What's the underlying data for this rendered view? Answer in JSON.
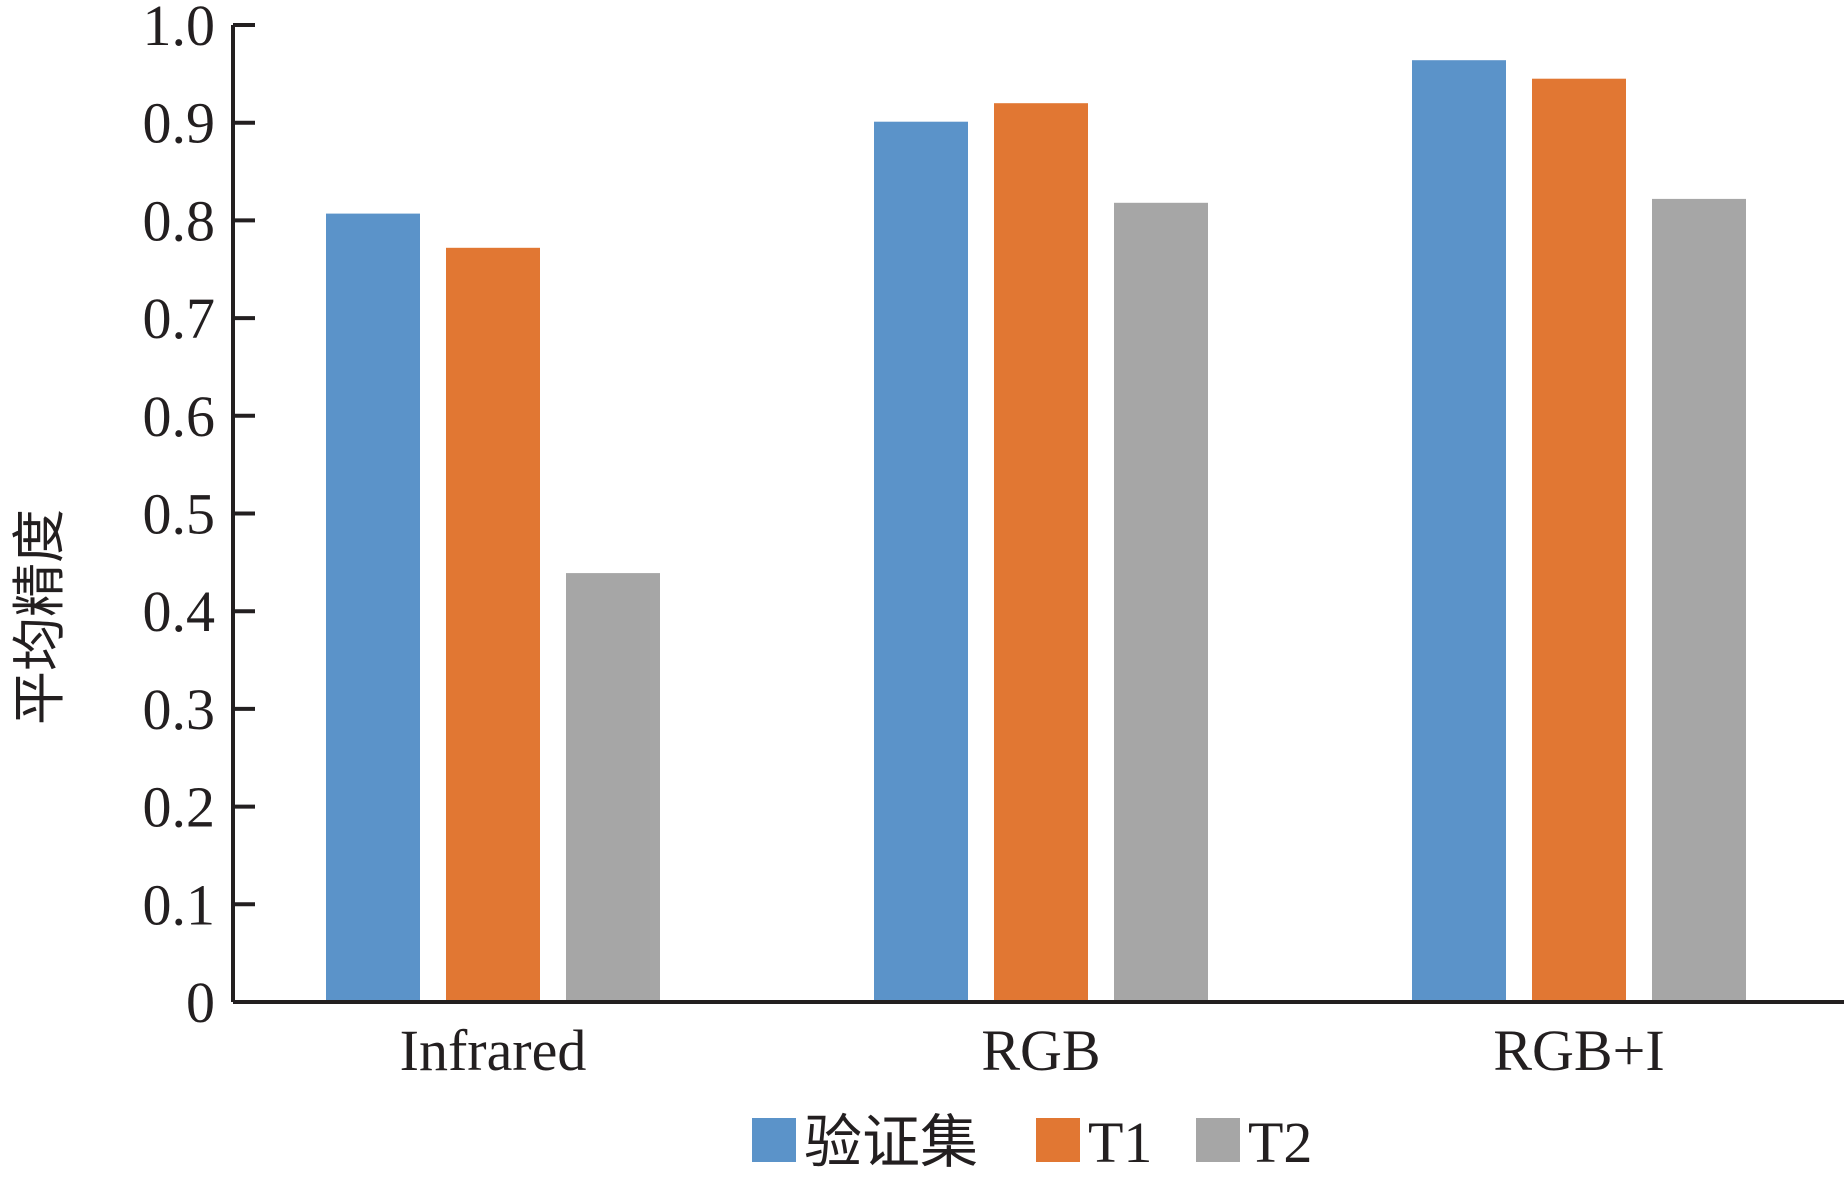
{
  "chart_data": {
    "type": "bar",
    "title": "",
    "xlabel": "",
    "ylabel": "平均精度",
    "categories": [
      "Infrared",
      "RGB",
      "RGB+I"
    ],
    "series": [
      {
        "name": "验证集",
        "color": "#5b93c9",
        "values": [
          0.807,
          0.901,
          0.964
        ]
      },
      {
        "name": "T1",
        "color": "#e17733",
        "values": [
          0.772,
          0.92,
          0.945
        ]
      },
      {
        "name": "T2",
        "color": "#a6a6a6",
        "values": [
          0.439,
          0.818,
          0.822
        ]
      }
    ],
    "ylim": [
      0,
      1.0
    ],
    "yticks": [
      "0",
      "0.1",
      "0.2",
      "0.3",
      "0.4",
      "0.5",
      "0.6",
      "0.7",
      "0.8",
      "0.9",
      "1.0"
    ],
    "grid": false,
    "legend_position": "bottom-center",
    "axis_color": "#231f20"
  }
}
